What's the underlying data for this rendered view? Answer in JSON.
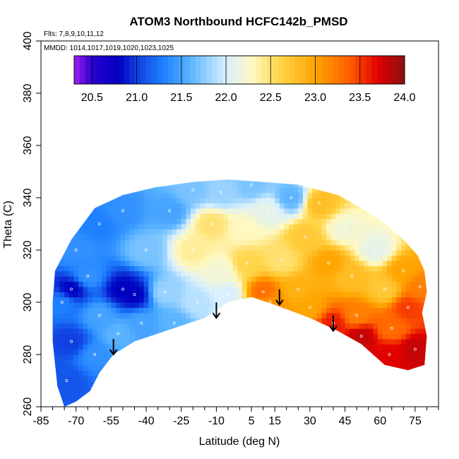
{
  "chart_data": {
    "type": "heatmap",
    "title": "ATOM3 Northbound HCFC142b_PMSD",
    "flights_note": "Flts: 7,8,9,10,11,12",
    "dates_note": "MMDD: 1014,1017,1019,1020,1023,1025",
    "xlabel": "Latitude (deg N)",
    "ylabel": "Theta (C)",
    "xlim": [
      -85,
      85
    ],
    "ylim": [
      260,
      400
    ],
    "x_ticks": [
      "-85",
      "-70",
      "-55",
      "-40",
      "-25",
      "-10",
      "5",
      "15",
      "30",
      "45",
      "60",
      "75"
    ],
    "y_ticks": [
      "260",
      "280",
      "300",
      "320",
      "340",
      "360",
      "380",
      "400"
    ],
    "colorbar": {
      "range": [
        20.3,
        24.0
      ],
      "ticks": [
        "20.5",
        "21.0",
        "21.5",
        "22.0",
        "22.5",
        "23.0",
        "23.5",
        "24.0"
      ],
      "stops": [
        {
          "v": 20.3,
          "c": "#a020f0"
        },
        {
          "v": 20.5,
          "c": "#2a00d0"
        },
        {
          "v": 20.8,
          "c": "#0000c0"
        },
        {
          "v": 21.0,
          "c": "#1040e0"
        },
        {
          "v": 21.3,
          "c": "#1e80ff"
        },
        {
          "v": 21.6,
          "c": "#5ab4ff"
        },
        {
          "v": 22.0,
          "c": "#d8f0ff"
        },
        {
          "v": 22.3,
          "c": "#fff8c0"
        },
        {
          "v": 22.6,
          "c": "#ffd54a"
        },
        {
          "v": 23.0,
          "c": "#ffa500"
        },
        {
          "v": 23.4,
          "c": "#ff5a00"
        },
        {
          "v": 23.7,
          "c": "#e00000"
        },
        {
          "v": 24.0,
          "c": "#8b1010"
        }
      ]
    },
    "arrows_at_latitude": [
      {
        "lat": -54,
        "theta": 280
      },
      {
        "lat": -10,
        "theta": 294
      },
      {
        "lat": 17,
        "theta": 299
      },
      {
        "lat": 40,
        "theta": 289
      }
    ],
    "coverage_outline": [
      [
        -79,
        312
      ],
      [
        -72,
        324
      ],
      [
        -62,
        336
      ],
      [
        -50,
        341
      ],
      [
        -36,
        344
      ],
      [
        -20,
        346
      ],
      [
        -5,
        347
      ],
      [
        10,
        346
      ],
      [
        25,
        345
      ],
      [
        42,
        341
      ],
      [
        52,
        336
      ],
      [
        62,
        330
      ],
      [
        70,
        324
      ],
      [
        76,
        318
      ],
      [
        79,
        312
      ],
      [
        80,
        304
      ],
      [
        78,
        296
      ],
      [
        80,
        287
      ],
      [
        79,
        276
      ],
      [
        72,
        274
      ],
      [
        62,
        276
      ],
      [
        52,
        284
      ],
      [
        42,
        289
      ],
      [
        30,
        294
      ],
      [
        15,
        299
      ],
      [
        5,
        302
      ],
      [
        -5,
        300
      ],
      [
        -15,
        294
      ],
      [
        -25,
        291
      ],
      [
        -35,
        288
      ],
      [
        -45,
        285
      ],
      [
        -54,
        280
      ],
      [
        -60,
        273
      ],
      [
        -64,
        266
      ],
      [
        -70,
        262
      ],
      [
        -75,
        260
      ],
      [
        -78,
        268
      ],
      [
        -80,
        285
      ],
      [
        -80,
        300
      ]
    ],
    "field_samples": [
      {
        "lat": -76,
        "theta": 300,
        "v": 21.3
      },
      {
        "lat": -72,
        "theta": 305,
        "v": 20.8
      },
      {
        "lat": -70,
        "theta": 320,
        "v": 21.4
      },
      {
        "lat": -72,
        "theta": 285,
        "v": 21.0
      },
      {
        "lat": -74,
        "theta": 270,
        "v": 21.1
      },
      {
        "lat": -65,
        "theta": 310,
        "v": 21.4
      },
      {
        "lat": -60,
        "theta": 330,
        "v": 21.3
      },
      {
        "lat": -60,
        "theta": 295,
        "v": 21.5
      },
      {
        "lat": -62,
        "theta": 280,
        "v": 21.4
      },
      {
        "lat": -50,
        "theta": 335,
        "v": 21.4
      },
      {
        "lat": -50,
        "theta": 305,
        "v": 20.8
      },
      {
        "lat": -45,
        "theta": 303,
        "v": 20.8
      },
      {
        "lat": -52,
        "theta": 288,
        "v": 21.6
      },
      {
        "lat": -40,
        "theta": 320,
        "v": 21.7
      },
      {
        "lat": -42,
        "theta": 292,
        "v": 21.5
      },
      {
        "lat": -30,
        "theta": 335,
        "v": 21.5
      },
      {
        "lat": -32,
        "theta": 304,
        "v": 21.8
      },
      {
        "lat": -28,
        "theta": 292,
        "v": 21.6
      },
      {
        "lat": -20,
        "theta": 343,
        "v": 21.7
      },
      {
        "lat": -20,
        "theta": 320,
        "v": 22.4
      },
      {
        "lat": -18,
        "theta": 300,
        "v": 21.9
      },
      {
        "lat": -12,
        "theta": 330,
        "v": 22.5
      },
      {
        "lat": -8,
        "theta": 342,
        "v": 21.8
      },
      {
        "lat": -8,
        "theta": 312,
        "v": 22.2
      },
      {
        "lat": -5,
        "theta": 303,
        "v": 22.0
      },
      {
        "lat": 2,
        "theta": 328,
        "v": 22.3
      },
      {
        "lat": 3,
        "theta": 315,
        "v": 22.6
      },
      {
        "lat": 5,
        "theta": 345,
        "v": 21.7
      },
      {
        "lat": 10,
        "theta": 304,
        "v": 23.3
      },
      {
        "lat": 13,
        "theta": 300,
        "v": 23.1
      },
      {
        "lat": 12,
        "theta": 335,
        "v": 22.1
      },
      {
        "lat": 18,
        "theta": 316,
        "v": 22.5
      },
      {
        "lat": 22,
        "theta": 340,
        "v": 21.6
      },
      {
        "lat": 25,
        "theta": 305,
        "v": 22.9
      },
      {
        "lat": 28,
        "theta": 325,
        "v": 22.7
      },
      {
        "lat": 30,
        "theta": 298,
        "v": 23.0
      },
      {
        "lat": 34,
        "theta": 338,
        "v": 22.8
      },
      {
        "lat": 38,
        "theta": 315,
        "v": 23.0
      },
      {
        "lat": 40,
        "theta": 292,
        "v": 23.6
      },
      {
        "lat": 45,
        "theta": 328,
        "v": 22.2
      },
      {
        "lat": 48,
        "theta": 310,
        "v": 22.8
      },
      {
        "lat": 50,
        "theta": 295,
        "v": 23.2
      },
      {
        "lat": 52,
        "theta": 287,
        "v": 23.8
      },
      {
        "lat": 58,
        "theta": 320,
        "v": 22.1
      },
      {
        "lat": 62,
        "theta": 305,
        "v": 22.7
      },
      {
        "lat": 65,
        "theta": 290,
        "v": 23.3
      },
      {
        "lat": 64,
        "theta": 280,
        "v": 23.7
      },
      {
        "lat": 70,
        "theta": 312,
        "v": 23.0
      },
      {
        "lat": 72,
        "theta": 298,
        "v": 23.5
      },
      {
        "lat": 75,
        "theta": 282,
        "v": 23.8
      },
      {
        "lat": 77,
        "theta": 306,
        "v": 23.2
      }
    ]
  }
}
